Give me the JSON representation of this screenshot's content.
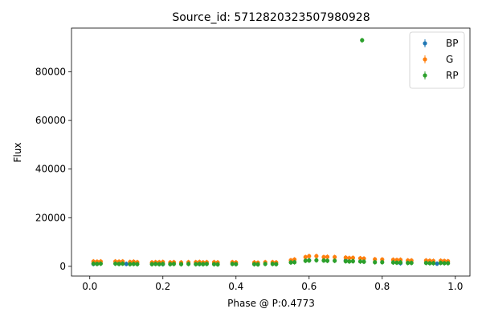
{
  "chart_data": {
    "type": "scatter",
    "title": "Source_id: 5712820323507980928",
    "xlabel": "Phase @ P:0.4773",
    "ylabel": "Flux",
    "xlim": [
      -0.05,
      1.04
    ],
    "ylim": [
      -4000,
      98000
    ],
    "x_ticks": [
      0.0,
      0.2,
      0.4,
      0.6,
      0.8,
      1.0
    ],
    "x_tick_labels": [
      "0.0",
      "0.2",
      "0.4",
      "0.6",
      "0.8",
      "1.0"
    ],
    "y_ticks": [
      0,
      20000,
      40000,
      60000,
      80000
    ],
    "y_tick_labels": [
      "0",
      "20000",
      "40000",
      "60000",
      "80000"
    ],
    "grid": false,
    "legend_position": "top-right",
    "series": [
      {
        "name": "BP",
        "color": "#1f77b4",
        "x": [
          0.01,
          0.1,
          0.2,
          0.3,
          0.45,
          0.6,
          0.7,
          0.85,
          0.95
        ],
        "y": [
          1000,
          1000,
          900,
          950,
          1000,
          2500,
          2400,
          1300,
          1100
        ]
      },
      {
        "name": "G",
        "color": "#ff7f0e",
        "x": [
          0.01,
          0.02,
          0.03,
          0.07,
          0.08,
          0.09,
          0.11,
          0.12,
          0.13,
          0.17,
          0.18,
          0.19,
          0.2,
          0.22,
          0.23,
          0.25,
          0.27,
          0.29,
          0.3,
          0.31,
          0.32,
          0.34,
          0.35,
          0.39,
          0.4,
          0.45,
          0.46,
          0.48,
          0.5,
          0.51,
          0.55,
          0.56,
          0.59,
          0.6,
          0.62,
          0.64,
          0.65,
          0.67,
          0.7,
          0.71,
          0.72,
          0.74,
          0.75,
          0.78,
          0.8,
          0.83,
          0.84,
          0.85,
          0.87,
          0.88,
          0.92,
          0.93,
          0.94,
          0.96,
          0.97,
          0.98
        ],
        "y": [
          2000,
          1900,
          2000,
          2000,
          1900,
          2000,
          1800,
          1900,
          1700,
          1600,
          1700,
          1700,
          1800,
          1600,
          1700,
          1600,
          1700,
          1700,
          1800,
          1600,
          1700,
          1700,
          1600,
          1700,
          1600,
          1600,
          1500,
          1700,
          1700,
          1600,
          2500,
          2800,
          3800,
          4200,
          4200,
          3800,
          3900,
          3800,
          3600,
          3400,
          3500,
          3300,
          3200,
          2900,
          2800,
          2700,
          2600,
          2700,
          2400,
          2400,
          2400,
          2300,
          2200,
          2300,
          2200,
          2100
        ]
      },
      {
        "name": "RP",
        "color": "#2ca02c",
        "x": [
          0.01,
          0.02,
          0.03,
          0.07,
          0.08,
          0.09,
          0.11,
          0.12,
          0.13,
          0.17,
          0.18,
          0.19,
          0.2,
          0.22,
          0.23,
          0.25,
          0.27,
          0.29,
          0.3,
          0.31,
          0.32,
          0.34,
          0.35,
          0.39,
          0.4,
          0.45,
          0.46,
          0.48,
          0.5,
          0.51,
          0.55,
          0.56,
          0.59,
          0.6,
          0.62,
          0.64,
          0.65,
          0.67,
          0.7,
          0.71,
          0.72,
          0.74,
          0.745,
          0.75,
          0.78,
          0.8,
          0.83,
          0.84,
          0.85,
          0.87,
          0.88,
          0.92,
          0.93,
          0.94,
          0.96,
          0.97,
          0.98
        ],
        "y": [
          1100,
          1000,
          1100,
          1100,
          1000,
          1100,
          900,
          1000,
          900,
          900,
          1000,
          900,
          1000,
          900,
          1000,
          900,
          1000,
          900,
          1000,
          900,
          1000,
          900,
          800,
          1000,
          900,
          900,
          800,
          1000,
          1000,
          900,
          1600,
          1700,
          2300,
          2400,
          2500,
          2400,
          2300,
          2300,
          2100,
          2000,
          2100,
          2000,
          93000,
          1900,
          1700,
          1700,
          1600,
          1500,
          1600,
          1400,
          1400,
          1400,
          1300,
          1300,
          1400,
          1300,
          1300
        ]
      }
    ]
  }
}
